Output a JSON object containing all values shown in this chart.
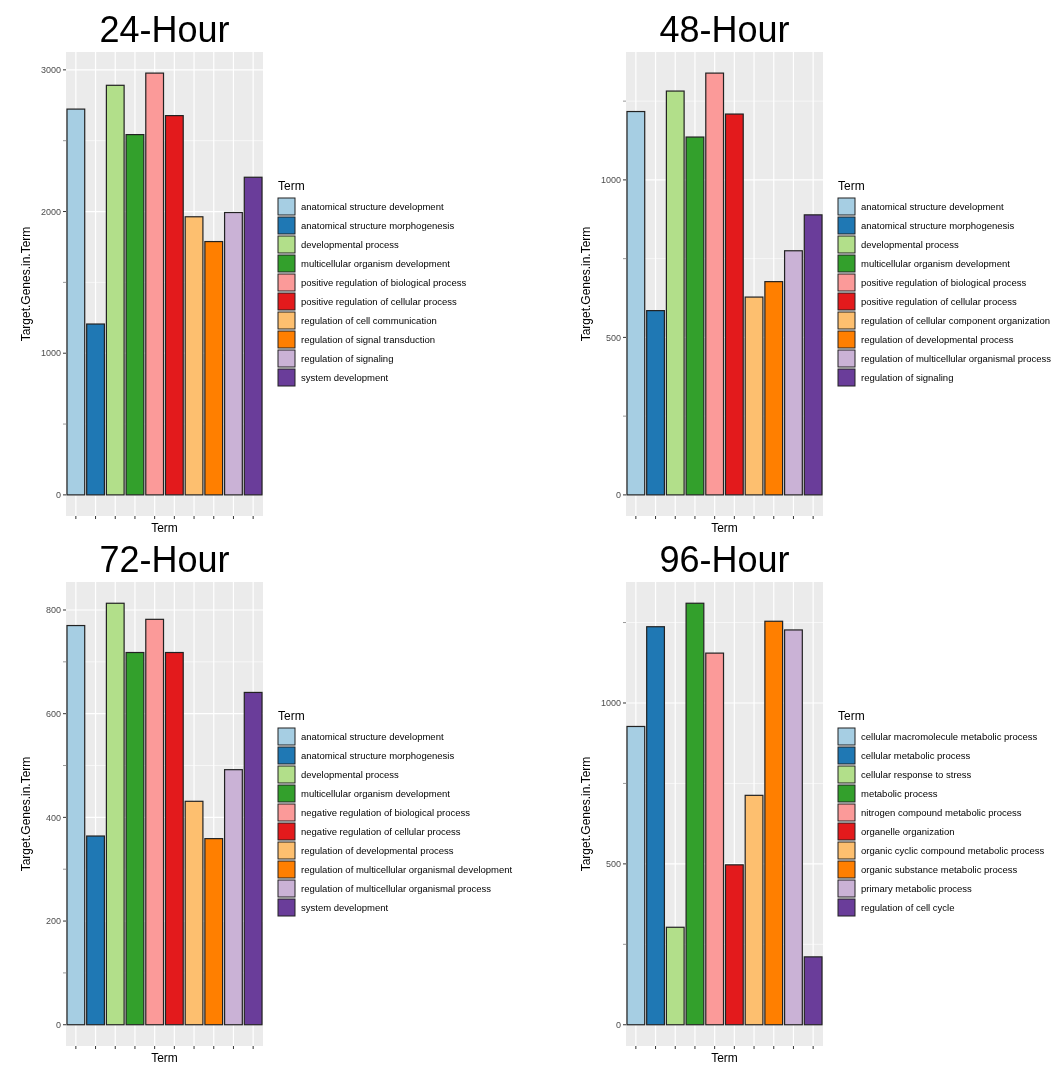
{
  "chart_data": [
    {
      "type": "bar",
      "stacked": true,
      "title": "24-Hour",
      "xlabel": "Term",
      "ylabel": "Target.Genes.in.Term",
      "legend_title": "Term",
      "legend": "right",
      "grid": true,
      "categories": [
        null,
        null,
        null,
        null,
        null,
        null,
        null,
        null,
        null,
        null
      ],
      "series": [
        {
          "name": "anatomical structure development",
          "color": "#a6cee3",
          "values": [
            2723,
            null,
            null,
            null,
            null,
            null,
            null,
            null,
            null,
            null
          ]
        },
        {
          "name": "anatomical structure morphogenesis",
          "color": "#1f78b4",
          "values": [
            null,
            1206,
            null,
            null,
            null,
            null,
            null,
            null,
            null,
            null
          ]
        },
        {
          "name": "developmental process",
          "color": "#b2df8a",
          "values": [
            null,
            null,
            2891,
            null,
            null,
            null,
            null,
            null,
            null,
            null
          ]
        },
        {
          "name": "multicellular organism development",
          "color": "#33a02c",
          "values": [
            null,
            null,
            null,
            2543,
            null,
            null,
            null,
            null,
            null,
            null
          ]
        },
        {
          "name": "positive regulation of biological process",
          "color": "#fb9a99",
          "values": [
            null,
            null,
            null,
            null,
            2977,
            null,
            null,
            null,
            null,
            null
          ]
        },
        {
          "name": "positive regulation of cellular process",
          "color": "#e31a1c",
          "values": [
            null,
            null,
            null,
            null,
            null,
            2677,
            null,
            null,
            null,
            null
          ]
        },
        {
          "name": "regulation of cell communication",
          "color": "#fdbf6f",
          "values": [
            null,
            null,
            null,
            null,
            null,
            null,
            1963,
            null,
            null,
            null
          ]
        },
        {
          "name": "regulation of signal transduction",
          "color": "#ff7f00",
          "values": [
            null,
            null,
            null,
            null,
            null,
            null,
            null,
            1788,
            null,
            null
          ]
        },
        {
          "name": "regulation of signaling",
          "color": "#cab2d6",
          "values": [
            null,
            null,
            null,
            null,
            null,
            null,
            null,
            null,
            1993,
            null
          ]
        },
        {
          "name": "system development",
          "color": "#6a3d9a",
          "values": [
            null,
            null,
            null,
            null,
            null,
            null,
            null,
            null,
            null,
            2242
          ]
        }
      ],
      "ylim": [
        -149,
        3126
      ],
      "yticks": [
        0,
        {
          "value": 500,
          "label": null
        },
        1000,
        {
          "value": 1500,
          "label": null
        },
        2000,
        {
          "value": 2500,
          "label": null
        },
        3000
      ]
    },
    {
      "type": "bar",
      "stacked": true,
      "title": "48-Hour",
      "xlabel": "Term",
      "ylabel": "Target.Genes.in.Term",
      "legend_title": "Term",
      "legend": "right",
      "grid": true,
      "categories": [
        null,
        null,
        null,
        null,
        null,
        null,
        null,
        null,
        null,
        null
      ],
      "series": [
        {
          "name": "anatomical structure development",
          "color": "#a6cee3",
          "values": [
            1217,
            null,
            null,
            null,
            null,
            null,
            null,
            null,
            null,
            null
          ]
        },
        {
          "name": "anatomical structure morphogenesis",
          "color": "#1f78b4",
          "values": [
            null,
            585,
            null,
            null,
            null,
            null,
            null,
            null,
            null,
            null
          ]
        },
        {
          "name": "developmental process",
          "color": "#b2df8a",
          "values": [
            null,
            null,
            1282,
            null,
            null,
            null,
            null,
            null,
            null,
            null
          ]
        },
        {
          "name": "multicellular organism development",
          "color": "#33a02c",
          "values": [
            null,
            null,
            null,
            1136,
            null,
            null,
            null,
            null,
            null,
            null
          ]
        },
        {
          "name": "positive regulation of biological process",
          "color": "#fb9a99",
          "values": [
            null,
            null,
            null,
            null,
            1339,
            null,
            null,
            null,
            null,
            null
          ]
        },
        {
          "name": "positive regulation of cellular process",
          "color": "#e31a1c",
          "values": [
            null,
            null,
            null,
            null,
            null,
            1209,
            null,
            null,
            null,
            null
          ]
        },
        {
          "name": "regulation of cellular component organization",
          "color": "#fdbf6f",
          "values": [
            null,
            null,
            null,
            null,
            null,
            null,
            628,
            null,
            null,
            null
          ]
        },
        {
          "name": "regulation of developmental process",
          "color": "#ff7f00",
          "values": [
            null,
            null,
            null,
            null,
            null,
            null,
            null,
            677,
            null,
            null
          ]
        },
        {
          "name": "regulation of multicellular organismal process",
          "color": "#cab2d6",
          "values": [
            null,
            null,
            null,
            null,
            null,
            null,
            null,
            null,
            775,
            null
          ]
        },
        {
          "name": "regulation of signaling",
          "color": "#6a3d9a",
          "values": [
            null,
            null,
            null,
            null,
            null,
            null,
            null,
            null,
            null,
            889
          ]
        }
      ],
      "ylim": [
        -67,
        1406
      ],
      "yticks": [
        0,
        {
          "value": 250,
          "label": null
        },
        500,
        {
          "value": 750,
          "label": null
        },
        1000,
        {
          "value": 1250,
          "label": null
        }
      ]
    },
    {
      "type": "bar",
      "stacked": true,
      "title": "72-Hour",
      "xlabel": "Term",
      "ylabel": "Target.Genes.in.Term",
      "legend_title": "Term",
      "legend": "right",
      "grid": true,
      "categories": [
        null,
        null,
        null,
        null,
        null,
        null,
        null,
        null,
        null,
        null
      ],
      "series": [
        {
          "name": "anatomical structure development",
          "color": "#a6cee3",
          "values": [
            770,
            null,
            null,
            null,
            null,
            null,
            null,
            null,
            null,
            null
          ]
        },
        {
          "name": "anatomical structure morphogenesis",
          "color": "#1f78b4",
          "values": [
            null,
            364,
            null,
            null,
            null,
            null,
            null,
            null,
            null,
            null
          ]
        },
        {
          "name": "developmental process",
          "color": "#b2df8a",
          "values": [
            null,
            null,
            813,
            null,
            null,
            null,
            null,
            null,
            null,
            null
          ]
        },
        {
          "name": "multicellular organism development",
          "color": "#33a02c",
          "values": [
            null,
            null,
            null,
            718,
            null,
            null,
            null,
            null,
            null,
            null
          ]
        },
        {
          "name": "negative regulation of biological process",
          "color": "#fb9a99",
          "values": [
            null,
            null,
            null,
            null,
            782,
            null,
            null,
            null,
            null,
            null
          ]
        },
        {
          "name": "negative regulation of cellular process",
          "color": "#e31a1c",
          "values": [
            null,
            null,
            null,
            null,
            null,
            718,
            null,
            null,
            null,
            null
          ]
        },
        {
          "name": "regulation of developmental process",
          "color": "#fdbf6f",
          "values": [
            null,
            null,
            null,
            null,
            null,
            null,
            431,
            null,
            null,
            null
          ]
        },
        {
          "name": "regulation of multicellular organismal development",
          "color": "#ff7f00",
          "values": [
            null,
            null,
            null,
            null,
            null,
            null,
            null,
            359,
            null,
            null
          ]
        },
        {
          "name": "regulation of multicellular organismal process",
          "color": "#cab2d6",
          "values": [
            null,
            null,
            null,
            null,
            null,
            null,
            null,
            null,
            492,
            null
          ]
        },
        {
          "name": "system development",
          "color": "#6a3d9a",
          "values": [
            null,
            null,
            null,
            null,
            null,
            null,
            null,
            null,
            null,
            641
          ]
        }
      ],
      "ylim": [
        -41,
        854
      ],
      "yticks": [
        0,
        {
          "value": 100,
          "label": null
        },
        200,
        {
          "value": 300,
          "label": null
        },
        400,
        {
          "value": 500,
          "label": null
        },
        600,
        {
          "value": 700,
          "label": null
        },
        800
      ]
    },
    {
      "type": "bar",
      "stacked": true,
      "title": "96-Hour",
      "xlabel": "Term",
      "ylabel": "Target.Genes.in.Term",
      "legend_title": "Term",
      "legend": "right",
      "grid": true,
      "categories": [
        null,
        null,
        null,
        null,
        null,
        null,
        null,
        null,
        null,
        null
      ],
      "series": [
        {
          "name": "cellular macromolecule metabolic process",
          "color": "#a6cee3",
          "values": [
            927,
            null,
            null,
            null,
            null,
            null,
            null,
            null,
            null,
            null
          ]
        },
        {
          "name": "cellular metabolic process",
          "color": "#1f78b4",
          "values": [
            null,
            1237,
            null,
            null,
            null,
            null,
            null,
            null,
            null,
            null
          ]
        },
        {
          "name": "cellular response to stress",
          "color": "#b2df8a",
          "values": [
            null,
            null,
            303,
            null,
            null,
            null,
            null,
            null,
            null,
            null
          ]
        },
        {
          "name": "metabolic process",
          "color": "#33a02c",
          "values": [
            null,
            null,
            null,
            1310,
            null,
            null,
            null,
            null,
            null,
            null
          ]
        },
        {
          "name": "nitrogen compound metabolic process",
          "color": "#fb9a99",
          "values": [
            null,
            null,
            null,
            null,
            1155,
            null,
            null,
            null,
            null,
            null
          ]
        },
        {
          "name": "organelle organization",
          "color": "#e31a1c",
          "values": [
            null,
            null,
            null,
            null,
            null,
            497,
            null,
            null,
            null,
            null
          ]
        },
        {
          "name": "organic cyclic compound metabolic process",
          "color": "#fdbf6f",
          "values": [
            null,
            null,
            null,
            null,
            null,
            null,
            713,
            null,
            null,
            null
          ]
        },
        {
          "name": "organic substance metabolic process",
          "color": "#ff7f00",
          "values": [
            null,
            null,
            null,
            null,
            null,
            null,
            null,
            1254,
            null,
            null
          ]
        },
        {
          "name": "primary metabolic process",
          "color": "#cab2d6",
          "values": [
            null,
            null,
            null,
            null,
            null,
            null,
            null,
            null,
            1227,
            null
          ]
        },
        {
          "name": "regulation of cell cycle",
          "color": "#6a3d9a",
          "values": [
            null,
            null,
            null,
            null,
            null,
            null,
            null,
            null,
            null,
            211
          ]
        }
      ],
      "ylim": [
        -66,
        1376
      ],
      "yticks": [
        0,
        {
          "value": 250,
          "label": null
        },
        500,
        {
          "value": 750,
          "label": null
        },
        1000,
        {
          "value": 1250,
          "label": null
        }
      ]
    }
  ]
}
